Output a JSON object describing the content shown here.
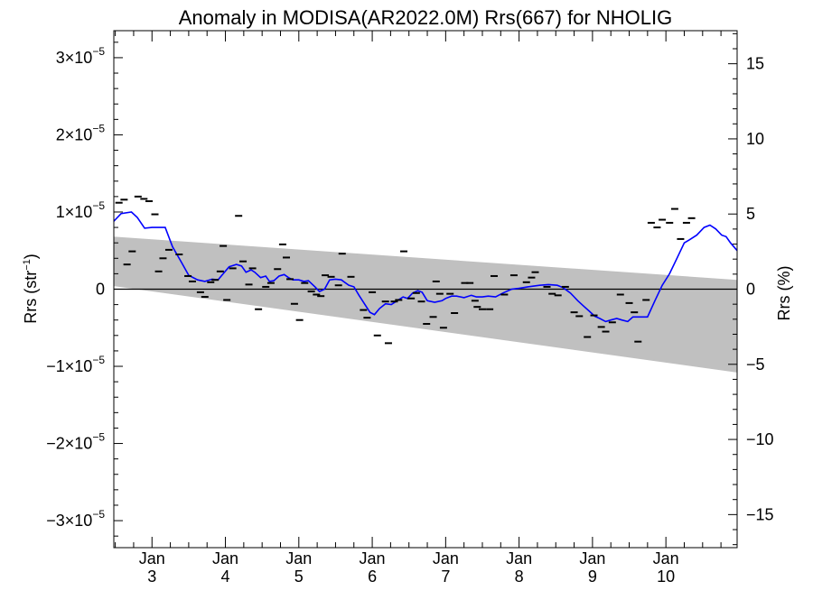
{
  "chart_data": {
    "type": "line",
    "title": "Anomaly in MODISA(AR2022.0M) Rrs(667) for NHOLIG",
    "ylabel_left": "Rrs (str",
    "ylabel_left_sup": "−1",
    "ylabel_left_close": ")",
    "ylabel_right": "Rrs (%)",
    "x_unit": "day",
    "xlim": [
      2.48,
      10.97
    ],
    "ylim_left": [
      -3.35e-05,
      3.35e-05
    ],
    "ylim_right": [
      -17.2,
      17.2
    ],
    "left_ticks": [
      {
        "value": 3e-05,
        "mant": "3×10",
        "exp": "−5"
      },
      {
        "value": 2e-05,
        "mant": "2×10",
        "exp": "−5"
      },
      {
        "value": 1e-05,
        "mant": "1×10",
        "exp": "−5"
      },
      {
        "value": 0,
        "mant": "0",
        "exp": ""
      },
      {
        "value": -1e-05,
        "mant": "−1×10",
        "exp": "−5"
      },
      {
        "value": -2e-05,
        "mant": "−2×10",
        "exp": "−5"
      },
      {
        "value": -3e-05,
        "mant": "−3×10",
        "exp": "−5"
      }
    ],
    "right_ticks": [
      {
        "value": 15,
        "label": "15"
      },
      {
        "value": 10,
        "label": "10"
      },
      {
        "value": 5,
        "label": "5"
      },
      {
        "value": 0,
        "label": "0"
      },
      {
        "value": -5,
        "label": "−5"
      },
      {
        "value": -10,
        "label": "−10"
      },
      {
        "value": -15,
        "label": "−15"
      }
    ],
    "x_ticks": [
      {
        "value": 3,
        "month": "Jan",
        "day": "3"
      },
      {
        "value": 4,
        "month": "Jan",
        "day": "4"
      },
      {
        "value": 5,
        "month": "Jan",
        "day": "5"
      },
      {
        "value": 6,
        "month": "Jan",
        "day": "6"
      },
      {
        "value": 7,
        "month": "Jan",
        "day": "7"
      },
      {
        "value": 8,
        "month": "Jan",
        "day": "8"
      },
      {
        "value": 9,
        "month": "Jan",
        "day": "9"
      },
      {
        "value": 10,
        "month": "Jan",
        "day": "10"
      }
    ],
    "band": {
      "x": [
        2.48,
        10.97
      ],
      "upper": [
        6.8e-06,
        1.2e-06
      ],
      "lower": [
        4e-07,
        -1.08e-05
      ],
      "color": "#c0c0c0"
    },
    "zero_line": true,
    "series": [
      {
        "name": "smoothed",
        "color": "#0000ff",
        "points": [
          [
            2.48,
            8.8e-06
          ],
          [
            2.58,
            9.8e-06
          ],
          [
            2.72,
            1e-05
          ],
          [
            2.8,
            9.3e-06
          ],
          [
            2.9,
            7.9e-06
          ],
          [
            3.0,
            8e-06
          ],
          [
            3.18,
            8e-06
          ],
          [
            3.28,
            5.5e-06
          ],
          [
            3.4,
            3.5e-06
          ],
          [
            3.5,
            1.8e-06
          ],
          [
            3.62,
            1.2e-06
          ],
          [
            3.72,
            1e-06
          ],
          [
            3.82,
            1.3e-06
          ],
          [
            3.9,
            1.2e-06
          ],
          [
            3.97,
            2e-06
          ],
          [
            4.05,
            2.9e-06
          ],
          [
            4.15,
            3.2e-06
          ],
          [
            4.22,
            3e-06
          ],
          [
            4.28,
            2.2e-06
          ],
          [
            4.35,
            2.5e-06
          ],
          [
            4.4,
            2.2e-06
          ],
          [
            4.48,
            1.5e-06
          ],
          [
            4.55,
            1.7e-06
          ],
          [
            4.6,
            1e-06
          ],
          [
            4.66,
            1.1e-06
          ],
          [
            4.73,
            1.7e-06
          ],
          [
            4.8,
            1.9e-06
          ],
          [
            4.86,
            1.5e-06
          ],
          [
            4.92,
            1.2e-06
          ],
          [
            5.0,
            1.2e-06
          ],
          [
            5.07,
            1e-06
          ],
          [
            5.13,
            1.1e-06
          ],
          [
            5.22,
            3e-07
          ],
          [
            5.28,
            -3e-07
          ],
          [
            5.35,
            0.0
          ],
          [
            5.42,
            1.2e-06
          ],
          [
            5.5,
            1.3e-06
          ],
          [
            5.58,
            1.2e-06
          ],
          [
            5.68,
            5e-07
          ],
          [
            5.75,
            3e-07
          ],
          [
            5.82,
            -8e-07
          ],
          [
            5.9,
            -2e-06
          ],
          [
            5.97,
            -3e-06
          ],
          [
            6.03,
            -3.3e-06
          ],
          [
            6.1,
            -2.5e-06
          ],
          [
            6.18,
            -1.9e-06
          ],
          [
            6.26,
            -2e-06
          ],
          [
            6.34,
            -1.5e-06
          ],
          [
            6.42,
            -1e-06
          ],
          [
            6.48,
            -1.2e-06
          ],
          [
            6.55,
            -5e-07
          ],
          [
            6.62,
            -2e-07
          ],
          [
            6.68,
            -4e-07
          ],
          [
            6.75,
            -1.5e-06
          ],
          [
            6.85,
            -1.7e-06
          ],
          [
            6.95,
            -1.5e-06
          ],
          [
            7.0,
            -1.2e-06
          ],
          [
            7.08,
            -9e-07
          ],
          [
            7.15,
            -9e-07
          ],
          [
            7.25,
            -1.1e-06
          ],
          [
            7.35,
            -8e-07
          ],
          [
            7.42,
            -1e-06
          ],
          [
            7.5,
            -1e-06
          ],
          [
            7.58,
            -9e-07
          ],
          [
            7.68,
            -1e-06
          ],
          [
            7.78,
            -5e-07
          ],
          [
            7.9,
            0.0
          ],
          [
            8.0,
            1e-07
          ],
          [
            8.12,
            3e-07
          ],
          [
            8.28,
            5e-07
          ],
          [
            8.4,
            6e-07
          ],
          [
            8.52,
            5e-07
          ],
          [
            8.6,
            2e-07
          ],
          [
            8.7,
            -5e-07
          ],
          [
            8.8,
            -1.5e-06
          ],
          [
            8.88,
            -2.2e-06
          ],
          [
            8.95,
            -2.8e-06
          ],
          [
            9.03,
            -3.5e-06
          ],
          [
            9.1,
            -3.8e-06
          ],
          [
            9.18,
            -4.2e-06
          ],
          [
            9.25,
            -4e-06
          ],
          [
            9.33,
            -3.8e-06
          ],
          [
            9.4,
            -4e-06
          ],
          [
            9.48,
            -4.2e-06
          ],
          [
            9.55,
            -3.6e-06
          ],
          [
            9.65,
            -3.6e-06
          ],
          [
            9.75,
            -3.6e-06
          ],
          [
            9.85,
            -1.5e-06
          ],
          [
            9.95,
            5e-07
          ],
          [
            10.05,
            2e-06
          ],
          [
            10.15,
            4e-06
          ],
          [
            10.25,
            6e-06
          ],
          [
            10.32,
            6.4e-06
          ],
          [
            10.42,
            7e-06
          ],
          [
            10.52,
            8e-06
          ],
          [
            10.6,
            8.3e-06
          ],
          [
            10.68,
            7.8e-06
          ],
          [
            10.76,
            7e-06
          ],
          [
            10.82,
            6.8e-06
          ],
          [
            10.88,
            6e-06
          ],
          [
            10.97,
            5e-06
          ]
        ]
      }
    ],
    "markers": {
      "name": "observations",
      "color": "#000000",
      "points": [
        [
          2.55,
          1.12e-05
        ],
        [
          2.62,
          1.16e-05
        ],
        [
          2.66,
          3.2e-06
        ],
        [
          2.73,
          4.9e-06
        ],
        [
          2.81,
          1.2e-05
        ],
        [
          2.89,
          1.17e-05
        ],
        [
          2.96,
          1.14e-05
        ],
        [
          3.04,
          9.7e-06
        ],
        [
          3.09,
          2.3e-06
        ],
        [
          3.15,
          4e-06
        ],
        [
          3.23,
          5.1e-06
        ],
        [
          3.37,
          4.5e-06
        ],
        [
          3.49,
          1.7e-06
        ],
        [
          3.55,
          1e-06
        ],
        [
          3.66,
          -4e-07
        ],
        [
          3.72,
          -1e-06
        ],
        [
          3.8,
          9e-07
        ],
        [
          3.86,
          1.2e-06
        ],
        [
          3.93,
          2.3e-06
        ],
        [
          3.97,
          5.6e-06
        ],
        [
          4.02,
          -1.4e-06
        ],
        [
          4.1,
          2.7e-06
        ],
        [
          4.18,
          9.5e-06
        ],
        [
          4.24,
          3.6e-06
        ],
        [
          4.32,
          6e-07
        ],
        [
          4.37,
          2.7e-06
        ],
        [
          4.45,
          -2.6e-06
        ],
        [
          4.55,
          3e-07
        ],
        [
          4.62,
          8e-07
        ],
        [
          4.71,
          2.6e-06
        ],
        [
          4.78,
          5.8e-06
        ],
        [
          4.83,
          4.1e-06
        ],
        [
          4.88,
          1.3e-06
        ],
        [
          4.94,
          -1.9e-06
        ],
        [
          5.01,
          -4e-06
        ],
        [
          5.08,
          8e-07
        ],
        [
          5.17,
          -3e-07
        ],
        [
          5.24,
          -7e-07
        ],
        [
          5.3,
          -9e-07
        ],
        [
          5.36,
          1.8e-06
        ],
        [
          5.44,
          1.6e-06
        ],
        [
          5.54,
          5e-07
        ],
        [
          5.59,
          4.6e-06
        ],
        [
          5.71,
          1.6e-06
        ],
        [
          5.88,
          -2.7e-06
        ],
        [
          5.93,
          -3.7e-06
        ],
        [
          6.0,
          -4e-07
        ],
        [
          6.07,
          -6e-06
        ],
        [
          6.18,
          -1.6e-06
        ],
        [
          6.22,
          -7e-06
        ],
        [
          6.3,
          -1.6e-06
        ],
        [
          6.36,
          -1.4e-06
        ],
        [
          6.43,
          4.9e-06
        ],
        [
          6.53,
          -1.2e-06
        ],
        [
          6.6,
          -5e-07
        ],
        [
          6.67,
          -1.6e-06
        ],
        [
          6.74,
          -4.5e-06
        ],
        [
          6.83,
          -3.6e-06
        ],
        [
          6.87,
          1e-06
        ],
        [
          6.92,
          -6e-07
        ],
        [
          6.97,
          -5e-06
        ],
        [
          7.06,
          -6e-07
        ],
        [
          7.12,
          -3.1e-06
        ],
        [
          7.26,
          8e-07
        ],
        [
          7.33,
          8e-07
        ],
        [
          7.4,
          -1.5e-06
        ],
        [
          7.43,
          -2.3e-06
        ],
        [
          7.5,
          -2.6e-06
        ],
        [
          7.6,
          -2.6e-06
        ],
        [
          7.66,
          1.7e-06
        ],
        [
          7.8,
          -7e-07
        ],
        [
          7.93,
          1.8e-06
        ],
        [
          8.1,
          9e-07
        ],
        [
          8.17,
          1.5e-06
        ],
        [
          8.22,
          2.2e-06
        ],
        [
          8.38,
          3e-07
        ],
        [
          8.45,
          -6e-07
        ],
        [
          8.53,
          -8e-07
        ],
        [
          8.63,
          3e-07
        ],
        [
          8.75,
          -3e-06
        ],
        [
          8.82,
          -3.5e-06
        ],
        [
          8.93,
          -6.2e-06
        ],
        [
          9.02,
          -3.4e-06
        ],
        [
          9.12,
          -4.9e-06
        ],
        [
          9.18,
          -5.5e-06
        ],
        [
          9.27,
          -4.3e-06
        ],
        [
          9.38,
          -7e-07
        ],
        [
          9.5,
          -1.8e-06
        ],
        [
          9.57,
          -3e-06
        ],
        [
          9.62,
          -6.8e-06
        ],
        [
          9.73,
          -1.4e-06
        ],
        [
          9.8,
          8.6e-06
        ],
        [
          9.88,
          8e-06
        ],
        [
          9.95,
          9e-06
        ],
        [
          10.05,
          8.6e-06
        ],
        [
          10.12,
          1.04e-05
        ],
        [
          10.2,
          6.5e-06
        ],
        [
          10.28,
          8.6e-06
        ],
        [
          10.35,
          9.2e-06
        ]
      ]
    }
  }
}
